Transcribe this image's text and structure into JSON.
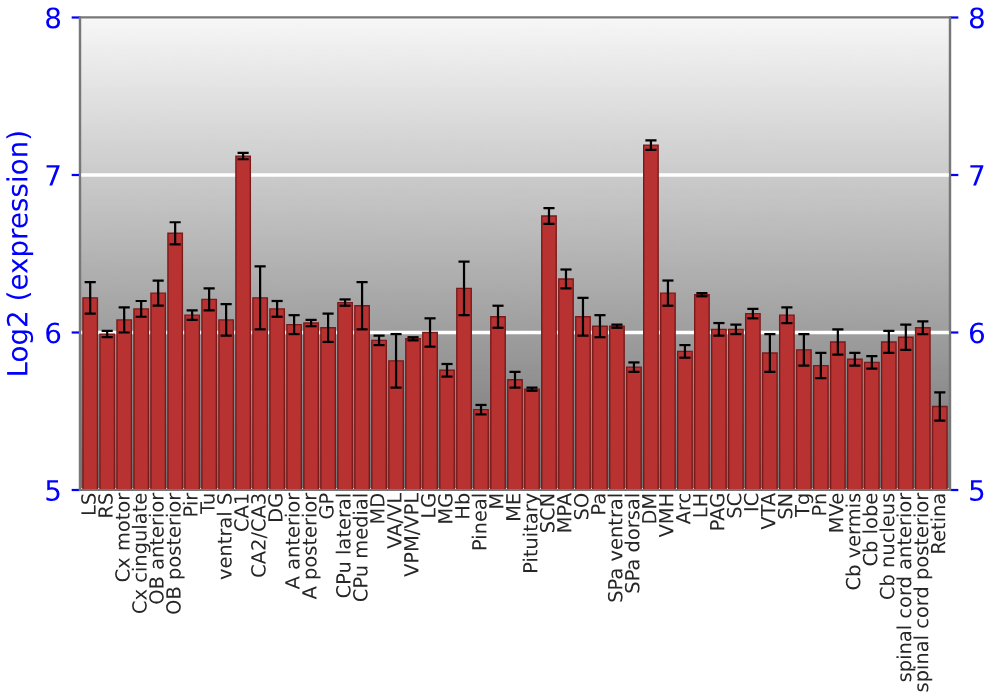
{
  "chart_data": {
    "type": "bar",
    "ylabel": "Log2 (expression)",
    "categories": [
      "LS",
      "RS",
      "Cx motor",
      "Cx cingulate",
      "OB anterior",
      "OB posterior",
      "Pir",
      "Tu",
      "ventral S",
      "CA1",
      "CA2/CA3",
      "DG",
      "A anterior",
      "A posterior",
      "GP",
      "CPu lateral",
      "CPu medial",
      "MD",
      "VA/VL",
      "VPM/VPL",
      "LG",
      "MG",
      "Hb",
      "Pineal",
      "M",
      "ME",
      "Pituitary",
      "SCN",
      "MPA",
      "SO",
      "Pa",
      "SPa ventral",
      "SPa dorsal",
      "DM",
      "VMH",
      "Arc",
      "LH",
      "PAG",
      "SC",
      "IC",
      "VTA",
      "SN",
      "Tg",
      "Pn",
      "MVe",
      "Cb vermis",
      "Cb lobe",
      "Cb nucleus",
      "spinal cord anterior",
      "spinal cord posterior",
      "Retina"
    ],
    "values": [
      6.22,
      5.99,
      6.08,
      6.15,
      6.25,
      6.63,
      6.11,
      6.21,
      6.08,
      7.12,
      6.22,
      6.15,
      6.05,
      6.06,
      6.03,
      6.19,
      6.17,
      5.95,
      5.82,
      5.96,
      6.0,
      5.76,
      6.28,
      5.51,
      6.1,
      5.7,
      5.64,
      6.74,
      6.34,
      6.1,
      6.04,
      6.04,
      5.78,
      7.19,
      6.25,
      5.88,
      6.24,
      6.02,
      6.02,
      6.12,
      5.87,
      6.11,
      5.89,
      5.79,
      5.94,
      5.83,
      5.81,
      5.94,
      5.97,
      6.03,
      5.53
    ],
    "errors": [
      0.1,
      0.02,
      0.08,
      0.05,
      0.08,
      0.07,
      0.03,
      0.07,
      0.1,
      0.02,
      0.2,
      0.05,
      0.06,
      0.02,
      0.09,
      0.02,
      0.15,
      0.03,
      0.17,
      0.01,
      0.09,
      0.04,
      0.17,
      0.03,
      0.07,
      0.05,
      0.01,
      0.05,
      0.06,
      0.12,
      0.07,
      0.01,
      0.03,
      0.03,
      0.08,
      0.04,
      0.01,
      0.04,
      0.03,
      0.03,
      0.12,
      0.05,
      0.1,
      0.08,
      0.08,
      0.04,
      0.04,
      0.07,
      0.08,
      0.04,
      0.09
    ],
    "color": "#b83232",
    "ylim": [
      5,
      8
    ],
    "yticks": [
      5,
      6,
      7,
      8
    ],
    "y2lim": [
      5,
      8
    ],
    "y2ticks": [
      5,
      6,
      7,
      8
    ],
    "grid": "y",
    "legend": false
  }
}
